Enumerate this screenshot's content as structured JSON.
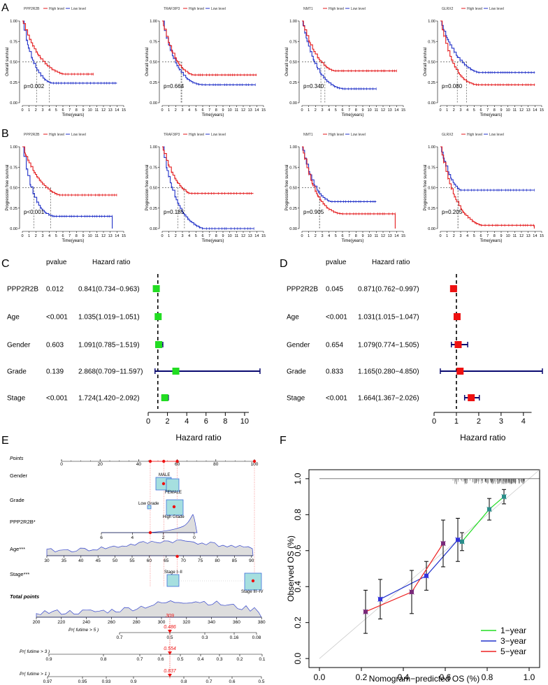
{
  "panel_letters": {
    "A": "A",
    "B": "B",
    "C": "C",
    "D": "D",
    "E": "E",
    "F": "F"
  },
  "colors": {
    "high": "#e41a1c",
    "low": "#2030c8",
    "green": "#22dd22",
    "red": "#ee1111",
    "navy": "#0a0a70",
    "calib_1": "#22dd22",
    "calib_3": "#2233cc",
    "calib_5": "#ee2222"
  },
  "km": {
    "legend_high": "High level",
    "legend_low": "Low level",
    "xlabel": "Time(years)",
    "ylabel_os": "Overall survival",
    "ylabel_pfs": "Progression free survival",
    "yticks": [
      "0.00",
      "0.25",
      "0.50",
      "0.75",
      "1.00"
    ],
    "xticks": [
      "0",
      "1",
      "2",
      "3",
      "4",
      "5",
      "6",
      "7",
      "8",
      "9",
      "10",
      "11",
      "12",
      "13",
      "14",
      "15"
    ],
    "os": [
      {
        "gene": "PPP2R2B",
        "p": "p=0.002",
        "med_high": 4.0,
        "med_low": 2.1,
        "end_high": 10.5,
        "end_low": 14.0,
        "plateau_high": 0.35,
        "plateau_low": 0.24
      },
      {
        "gene": "TRAF3IP3",
        "p": "p=0.664",
        "med_high": 2.9,
        "med_low": 2.8,
        "end_high": 14.0,
        "end_low": 13.8,
        "plateau_high": 0.34,
        "plateau_low": 0.22
      },
      {
        "gene": "NMT1",
        "p": "p=0.340",
        "med_high": 3.4,
        "med_low": 2.8,
        "end_high": 14.0,
        "end_low": 11.0,
        "plateau_high": 0.39,
        "plateau_low": 0.17
      },
      {
        "gene": "GLRX2",
        "p": "p=0.080",
        "med_high": 2.5,
        "med_low": 3.9,
        "end_high": 14.0,
        "end_low": 14.0,
        "plateau_high": 0.22,
        "plateau_low": 0.37
      }
    ],
    "pfs": [
      {
        "gene": "PPP2R2B",
        "p": "p<0.001",
        "med_high": 4.2,
        "med_low": 1.7,
        "end_high": 14.0,
        "end_low": 13.3,
        "plateau_high": 0.41,
        "plateau_low": 0.15
      },
      {
        "gene": "TRAF3IP3",
        "p": "p=0.185",
        "med_high": 3.3,
        "med_low": 2.3,
        "end_high": 13.5,
        "end_low": 13.6,
        "plateau_high": 0.43,
        "plateau_low": 0.0
      },
      {
        "gene": "NMT1",
        "p": "p=0.905",
        "med_high": 2.6,
        "med_low": 2.6,
        "end_high": 13.8,
        "end_low": 11.0,
        "plateau_high": 0.18,
        "plateau_low": 0.33
      },
      {
        "gene": "GLRX2",
        "p": "p=0.205",
        "med_high": 2.6,
        "med_low": 2.6,
        "end_high": 13.9,
        "end_low": 13.9,
        "plateau_high": 0.04,
        "plateau_low": 0.47
      }
    ]
  },
  "forest": {
    "pvalue_header": "pvalue",
    "hr_header": "Hazard ratio",
    "xlabel": "Hazard ratio",
    "uni": {
      "xticks": [
        "0",
        "2",
        "4",
        "6",
        "8",
        "10"
      ],
      "xmax": 11.6,
      "rows": [
        {
          "name": "PPP2R2B",
          "p": "0.012",
          "hr_text": "0.841(0.734−0.963)",
          "hr": 0.841,
          "lo": 0.734,
          "hi": 0.963
        },
        {
          "name": "Age",
          "p": "<0.001",
          "hr_text": "1.035(1.019−1.051)",
          "hr": 1.035,
          "lo": 1.019,
          "hi": 1.051
        },
        {
          "name": "Gender",
          "p": "0.603",
          "hr_text": "1.091(0.785−1.519)",
          "hr": 1.091,
          "lo": 0.785,
          "hi": 1.519
        },
        {
          "name": "Grade",
          "p": "0.139",
          "hr_text": "2.868(0.709−11.597)",
          "hr": 2.868,
          "lo": 0.709,
          "hi": 11.597
        },
        {
          "name": "Stage",
          "p": "<0.001",
          "hr_text": "1.724(1.420−2.092)",
          "hr": 1.724,
          "lo": 1.42,
          "hi": 2.092
        }
      ]
    },
    "multi": {
      "xticks": [
        "0",
        "1",
        "2",
        "3",
        "4"
      ],
      "xmax": 4.85,
      "rows": [
        {
          "name": "PPP2R2B",
          "p": "0.045",
          "hr_text": "0.871(0.762−0.997)",
          "hr": 0.871,
          "lo": 0.762,
          "hi": 0.997
        },
        {
          "name": "Age",
          "p": "<0.001",
          "hr_text": "1.031(1.015−1.047)",
          "hr": 1.031,
          "lo": 1.015,
          "hi": 1.047
        },
        {
          "name": "Gender",
          "p": "0.654",
          "hr_text": "1.079(0.774−1.505)",
          "hr": 1.079,
          "lo": 0.774,
          "hi": 1.505
        },
        {
          "name": "Grade",
          "p": "0.833",
          "hr_text": "1.165(0.280−4.850)",
          "hr": 1.165,
          "lo": 0.28,
          "hi": 4.85
        },
        {
          "name": "Stage",
          "p": "<0.001",
          "hr_text": "1.664(1.367−2.026)",
          "hr": 1.664,
          "lo": 1.367,
          "hi": 2.026
        }
      ]
    }
  },
  "nomogram": {
    "points_label": "Points",
    "points_ticks": [
      "0",
      "20",
      "40",
      "60",
      "80",
      "100"
    ],
    "gender_label": "Gender",
    "gender_male": "MALE",
    "gender_female": "FEMALE",
    "grade_label": "Grade",
    "grade_low": "Low Grade",
    "grade_high": "High Grade",
    "ppp_label": "PPP2R2B*",
    "ppp_ticks": [
      "6",
      "4",
      "2",
      "0"
    ],
    "age_label": "Age***",
    "age_ticks": [
      "30",
      "35",
      "40",
      "45",
      "50",
      "55",
      "60",
      "65",
      "70",
      "75",
      "80",
      "85",
      "90"
    ],
    "stage_label": "Stage***",
    "stage_1": "Stage I−II",
    "stage_3": "Stage III−IV",
    "total_label": "Total points",
    "total_ticks": [
      "200",
      "220",
      "240",
      "260",
      "280",
      "300",
      "320",
      "340",
      "360",
      "380"
    ],
    "total_value": "309",
    "pr5_label": "Pr( futime > 5 )",
    "pr5_ticks": [
      "0.7",
      "0.5",
      "0.3",
      "0.16",
      "0.08"
    ],
    "pr5_value": "0.486",
    "pr3_label": "Pr( futime > 3 )",
    "pr3_ticks": [
      "0.9",
      "0.8",
      "0.7",
      "0.6",
      "0.5",
      "0.4",
      "0.3",
      "0.2",
      "0.1"
    ],
    "pr3_value": "0.554",
    "pr1_label": "Pr( futime > 1 )",
    "pr1_ticks": [
      "0.97",
      "0.95",
      "0.93",
      "0.9",
      "0.8",
      "0.7",
      "0.6",
      "0.5"
    ],
    "pr1_value": "0.837"
  },
  "chart_data": {
    "type": "line",
    "title": "",
    "xlabel": "Nomogram−predicted OS (%)",
    "ylabel": "Observed OS (%)",
    "xlim": [
      -0.05,
      1.05
    ],
    "ylim": [
      -0.05,
      1.05
    ],
    "xticks": [
      "0.0",
      "0.2",
      "0.4",
      "0.6",
      "0.8",
      "1.0"
    ],
    "yticks": [
      "0.0",
      "0.2",
      "0.4",
      "0.6",
      "0.8",
      "1.0"
    ],
    "legend_position": "bottom-right",
    "series": [
      {
        "name": "1−year",
        "x": [
          0.68,
          0.81,
          0.88
        ],
        "y": [
          0.65,
          0.83,
          0.9
        ],
        "err": [
          0.05,
          0.06,
          0.04
        ]
      },
      {
        "name": "3−year",
        "x": [
          0.29,
          0.51,
          0.66
        ],
        "y": [
          0.33,
          0.46,
          0.66
        ],
        "err": [
          0.11,
          0.08,
          0.12
        ]
      },
      {
        "name": "5−year",
        "x": [
          0.22,
          0.44,
          0.59
        ],
        "y": [
          0.26,
          0.37,
          0.64
        ],
        "err": [
          0.12,
          0.12,
          0.13
        ]
      }
    ]
  }
}
